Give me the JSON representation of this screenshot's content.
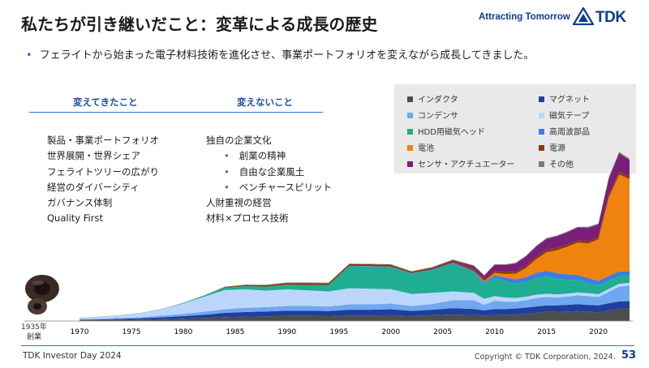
{
  "header": {
    "title": "私たちが引き継いだこと：変革による成長の歴史",
    "slogan": "Attracting Tomorrow",
    "logo_text": "TDK"
  },
  "bullet": "フェライトから始まった電子材料技術を進化させ、事業ポートフォリオを変えながら成長してきました。",
  "columns": {
    "changed": {
      "heading": "変えてきたこと",
      "items": [
        "製品・事業ポートフォリオ",
        "世界展開・世界シェア",
        "フェライトツリーの広がり",
        "経営のダイバーシティ",
        "ガバナンス体制",
        "Quality First"
      ]
    },
    "unchanged": {
      "heading": "変えないこと",
      "items": [
        {
          "text": "独自の企業文化",
          "sub": false
        },
        {
          "text": "創業の精神",
          "sub": true
        },
        {
          "text": "自由な企業風土",
          "sub": true
        },
        {
          "text": "ベンチャースピリット",
          "sub": true
        },
        {
          "text": "人財重視の経営",
          "sub": false
        },
        {
          "text": "材料×プロセス技術",
          "sub": false
        }
      ]
    }
  },
  "founding": {
    "year": "1935年",
    "label": "創業"
  },
  "legend": [
    {
      "name": "インダクタ",
      "color": "#4d4d4d"
    },
    {
      "name": "マグネット",
      "color": "#1f3f9e"
    },
    {
      "name": "コンデンサ",
      "color": "#6fa8f0"
    },
    {
      "name": "磁気テープ",
      "color": "#bcd6fb"
    },
    {
      "name": "HDD用磁気ヘッド",
      "color": "#1fae92"
    },
    {
      "name": "高周波部品",
      "color": "#3a7ee0"
    },
    {
      "name": "電池",
      "color": "#f0820f"
    },
    {
      "name": "電源",
      "color": "#8b3a08"
    },
    {
      "name": "センサ・アクチュエーター",
      "color": "#7a1e7a"
    },
    {
      "name": "その他",
      "color": "#7b7b7b"
    }
  ],
  "chart_data": {
    "type": "area",
    "x_tick_labels": [
      "1970",
      "1975",
      "1980",
      "1985",
      "1990",
      "1995",
      "2000",
      "2005",
      "2010",
      "2015",
      "2020"
    ],
    "x": [
      1970,
      1972,
      1974,
      1976,
      1978,
      1980,
      1982,
      1984,
      1986,
      1988,
      1990,
      1992,
      1994,
      1996,
      1998,
      2000,
      2002,
      2004,
      2006,
      2008,
      2009,
      2010,
      2011,
      2012,
      2013,
      2014,
      2015,
      2016,
      2017,
      2018,
      2019,
      2020,
      2021,
      2022,
      2023
    ],
    "series": [
      {
        "name": "インダクタ",
        "values": [
          0.3,
          0.4,
          0.5,
          0.6,
          0.8,
          1.0,
          1.3,
          1.7,
          1.9,
          2.0,
          2.2,
          2.2,
          2.1,
          2.4,
          2.4,
          2.5,
          2.2,
          2.5,
          2.8,
          2.6,
          2.4,
          2.6,
          2.6,
          2.8,
          3.2,
          3.6,
          4.0,
          4.0,
          4.1,
          4.3,
          4.0,
          3.8,
          4.6,
          5.3,
          5.6
        ]
      },
      {
        "name": "マグネット",
        "values": [
          0.2,
          0.3,
          0.4,
          0.6,
          0.8,
          1.1,
          1.4,
          1.8,
          2.0,
          2.1,
          2.3,
          2.3,
          2.2,
          2.5,
          2.5,
          2.6,
          2.2,
          2.4,
          2.8,
          2.6,
          2.2,
          2.6,
          2.6,
          2.6,
          2.6,
          2.7,
          2.8,
          2.8,
          2.9,
          3.0,
          3.0,
          3.0,
          3.1,
          3.2,
          3.0
        ]
      },
      {
        "name": "コンデンサ",
        "values": [
          0.2,
          0.3,
          0.4,
          0.5,
          0.8,
          1.0,
          1.3,
          1.6,
          1.8,
          1.9,
          2.0,
          2.0,
          2.0,
          2.3,
          2.3,
          2.5,
          2.1,
          2.5,
          3.4,
          3.8,
          2.4,
          3.6,
          3.2,
          3.0,
          3.2,
          3.6,
          3.6,
          3.4,
          3.6,
          3.8,
          3.8,
          3.6,
          5.0,
          6.4,
          6.8
        ]
      },
      {
        "name": "磁気テープ",
        "values": [
          0.5,
          0.8,
          1.2,
          1.8,
          2.8,
          4.5,
          6.5,
          8.3,
          8.0,
          7.2,
          7.2,
          6.8,
          6.5,
          7.0,
          6.8,
          6.2,
          5.2,
          4.8,
          3.8,
          3.2,
          2.6,
          2.0,
          1.8,
          1.6,
          1.5,
          1.5,
          1.4,
          1.3,
          1.3,
          1.3,
          1.3,
          1.2,
          1.2,
          1.2,
          1.2
        ]
      },
      {
        "name": "HDD用磁気ヘッド",
        "values": [
          0,
          0,
          0,
          0,
          0,
          0.2,
          0.5,
          1.0,
          1.4,
          1.7,
          2.0,
          2.3,
          2.8,
          9.6,
          9.6,
          9.5,
          8.8,
          9.8,
          12.0,
          9.0,
          6.4,
          7.8,
          7.2,
          6.2,
          6.4,
          7.2,
          7.6,
          6.8,
          6.0,
          5.4,
          4.4,
          3.8,
          3.6,
          3.4,
          3.0
        ]
      },
      {
        "name": "高周波部品",
        "values": [
          0,
          0,
          0,
          0,
          0,
          0,
          0,
          0,
          0,
          0,
          0,
          0,
          0,
          0.1,
          0.2,
          0.3,
          0.3,
          0.4,
          0.6,
          0.6,
          0.8,
          1.2,
          1.5,
          1.8,
          2.0,
          2.2,
          2.4,
          2.4,
          2.3,
          2.2,
          2.1,
          2.0,
          2.0,
          2.0,
          2.0
        ]
      },
      {
        "name": "電池",
        "values": [
          0,
          0,
          0,
          0,
          0,
          0,
          0,
          0,
          0,
          0,
          0,
          0,
          0,
          0,
          0,
          0,
          0,
          0,
          0,
          0,
          0.5,
          1.0,
          1.5,
          2.5,
          4.0,
          6.0,
          8.0,
          10.0,
          12.0,
          14.0,
          15.0,
          18.0,
          34.0,
          42.0,
          40.0
        ]
      },
      {
        "name": "電源",
        "values": [
          0,
          0,
          0,
          0,
          0,
          0,
          0,
          0.3,
          0.5,
          0.6,
          0.8,
          0.9,
          0.8,
          0.8,
          0.8,
          0.8,
          0.6,
          0.8,
          1.0,
          1.0,
          0.8,
          1.0,
          0.9,
          0.9,
          1.0,
          1.0,
          1.0,
          1.0,
          1.0,
          1.0,
          1.0,
          1.0,
          1.2,
          1.2,
          1.2
        ]
      },
      {
        "name": "センサ・アクチュエーター",
        "values": [
          0,
          0,
          0,
          0,
          0,
          0,
          0,
          0,
          0,
          0,
          0,
          0,
          0,
          0,
          0,
          0,
          0,
          0,
          0,
          1.0,
          1.5,
          2.5,
          3.0,
          3.5,
          4.0,
          4.5,
          4.8,
          5.0,
          5.2,
          5.5,
          5.8,
          5.5,
          7.0,
          8.0,
          7.0
        ]
      },
      {
        "name": "その他",
        "values": [
          0.1,
          0.1,
          0.1,
          0.1,
          0.1,
          0.1,
          0.1,
          0.2,
          0.2,
          0.2,
          0.2,
          0.2,
          0.2,
          0.2,
          0.2,
          0.2,
          0.2,
          0.2,
          0.3,
          0.3,
          0.3,
          0.3,
          0.3,
          0.3,
          0.3,
          0.3,
          0.4,
          0.4,
          0.4,
          0.4,
          0.4,
          0.4,
          0.6,
          0.6,
          0.6
        ]
      }
    ],
    "ylim": [
      0,
      90
    ]
  },
  "footer": {
    "left": "TDK Investor Day 2024",
    "copyright": "Copyright  © TDK Corporation, 2024.",
    "page": "53"
  }
}
